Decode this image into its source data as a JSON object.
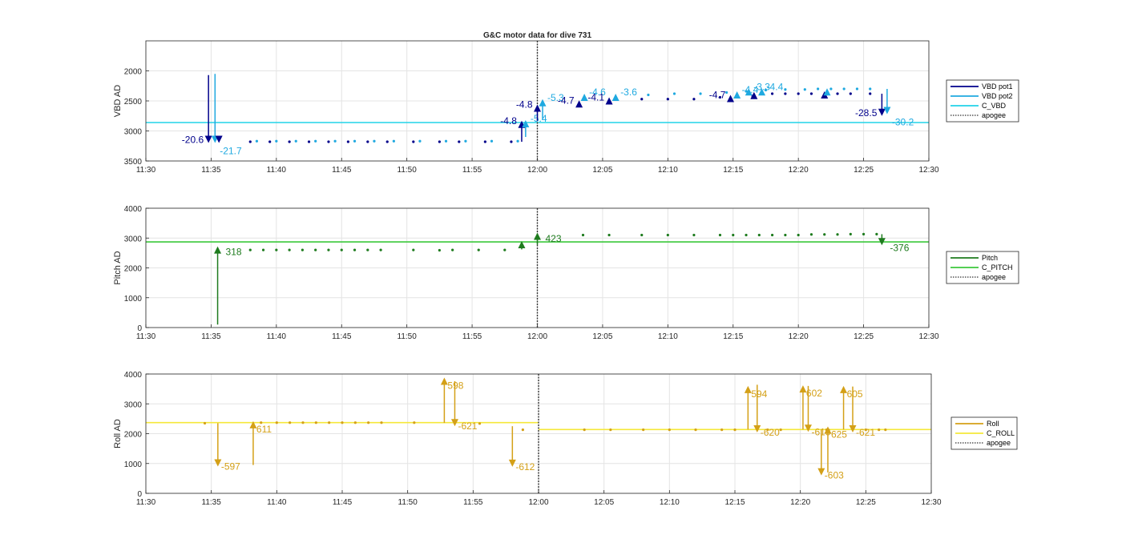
{
  "chart_data": [
    {
      "type": "scatter",
      "title": "G&C motor data for dive 731",
      "ylabel": "VBD AD",
      "ylim": [
        1500,
        3500
      ],
      "yreversed": true,
      "yticks": [
        2000,
        2500,
        3000,
        3500
      ],
      "xlim": [
        "11:30",
        "12:30"
      ],
      "xticks": [
        "11:30",
        "11:35",
        "11:40",
        "11:45",
        "11:50",
        "11:55",
        "12:00",
        "12:05",
        "12:10",
        "12:15",
        "12:20",
        "12:25",
        "12:30"
      ],
      "grid": true,
      "legend_position": "outside-right",
      "legend": [
        {
          "label": "VBD pot1",
          "color": "#00008b",
          "style": "solid"
        },
        {
          "label": "VBD pot2",
          "color": "#1fa9e0",
          "style": "solid"
        },
        {
          "label": "C_VBD",
          "color": "#22d3e8",
          "style": "solid"
        },
        {
          "label": "apogee",
          "color": "#333333",
          "style": "dotted"
        }
      ],
      "reference_line": {
        "name": "C_VBD",
        "y": 2860,
        "color": "#22d3e8"
      },
      "apogee": "12:00",
      "series": [
        {
          "name": "VBD pot1",
          "color": "#00008b",
          "x": [
            "11:38",
            "11:39.5",
            "11:41",
            "11:42.5",
            "11:44",
            "11:45.5",
            "11:47",
            "11:48.5",
            "11:50.5",
            "11:52.5",
            "11:54",
            "11:56",
            "11:58",
            "12:08",
            "12:10",
            "12:12",
            "12:14",
            "12:16.5",
            "12:18",
            "12:19",
            "12:20",
            "12:21",
            "12:23",
            "12:24",
            "12:25.5"
          ],
          "y": [
            3180,
            3180,
            3180,
            3180,
            3180,
            3180,
            3180,
            3180,
            3180,
            3180,
            3180,
            3180,
            3180,
            2470,
            2470,
            2470,
            2440,
            2420,
            2380,
            2380,
            2380,
            2380,
            2380,
            2380,
            2380
          ]
        },
        {
          "name": "VBD pot2",
          "color": "#1fa9e0",
          "x": [
            "11:38.5",
            "11:40",
            "11:41.5",
            "11:43",
            "11:44.5",
            "11:46",
            "11:47.5",
            "11:49",
            "11:51",
            "11:53",
            "11:54.5",
            "11:56.5",
            "11:58.5",
            "12:08.5",
            "12:10.5",
            "12:12.5",
            "12:14.5",
            "12:16",
            "12:17.5",
            "12:19",
            "12:20.5",
            "12:21.5",
            "12:22.5",
            "12:23.5",
            "12:24.5",
            "12:25.5"
          ],
          "y": [
            3170,
            3170,
            3170,
            3170,
            3170,
            3170,
            3170,
            3170,
            3170,
            3170,
            3170,
            3170,
            3170,
            2400,
            2380,
            2380,
            2360,
            2340,
            2320,
            2310,
            2310,
            2300,
            2300,
            2300,
            2300,
            2300
          ]
        }
      ],
      "moves": [
        {
          "x": "11:34.8",
          "from": 2070,
          "to": 3200,
          "color": "#00008b",
          "label": "-20.6",
          "label_color": "#00008b"
        },
        {
          "x": "11:35.3",
          "from": 2050,
          "to": 3200,
          "color": "#1fa9e0",
          "label": "-21.7",
          "label_color": "#1fa9e0"
        },
        {
          "x": "11:35.6",
          "from": 3180,
          "to": 3200,
          "color": "#00008b",
          "label": "",
          "label_color": "#00008b"
        },
        {
          "x": "11:58.8",
          "from": 3180,
          "to": 2830,
          "color": "#00008b",
          "label": "-4.8",
          "label_color": "#00008b"
        },
        {
          "x": "11:59.1",
          "from": 3100,
          "to": 2820,
          "color": "#1fa9e0",
          "label": "-5.4",
          "label_color": "#1fa9e0"
        },
        {
          "x": "12:00",
          "from": 2830,
          "to": 2560,
          "color": "#00008b",
          "label": "-4.8",
          "label_color": "#00008b"
        },
        {
          "x": "12:00.4",
          "from": 2800,
          "to": 2470,
          "color": "#1fa9e0",
          "label": "-5.3",
          "label_color": "#1fa9e0"
        },
        {
          "x": "12:03.2",
          "from": 2580,
          "to": 2490,
          "color": "#00008b",
          "label": "-4.7",
          "label_color": "#00008b"
        },
        {
          "x": "12:03.6",
          "from": 2460,
          "to": 2380,
          "color": "#1fa9e0",
          "label": "-4.6",
          "label_color": "#1fa9e0"
        },
        {
          "x": "12:05.5",
          "from": 2500,
          "to": 2440,
          "color": "#00008b",
          "label": "-4.1",
          "label_color": "#00008b"
        },
        {
          "x": "12:06",
          "from": 2430,
          "to": 2380,
          "color": "#1fa9e0",
          "label": "-3.6",
          "label_color": "#1fa9e0"
        },
        {
          "x": "12:14.8",
          "from": 2460,
          "to": 2400,
          "color": "#00008b",
          "label": "-4.7",
          "label_color": "#00008b"
        },
        {
          "x": "12:15.3",
          "from": 2400,
          "to": 2340,
          "color": "#1fa9e0",
          "label": "-4.4",
          "label_color": "#1fa9e0"
        },
        {
          "x": "12:16.6",
          "from": 2420,
          "to": 2350,
          "color": "#00008b",
          "label": "",
          "label_color": "#00008b"
        },
        {
          "x": "12:16.2",
          "from": 2350,
          "to": 2290,
          "color": "#1fa9e0",
          "label": "-3.3",
          "label_color": "#1fa9e0"
        },
        {
          "x": "12:17.2",
          "from": 2350,
          "to": 2290,
          "color": "#1fa9e0",
          "label": "-4.4",
          "label_color": "#1fa9e0"
        },
        {
          "x": "12:22",
          "from": 2420,
          "to": 2340,
          "color": "#00008b",
          "label": "",
          "label_color": "#00008b"
        },
        {
          "x": "12:22.2",
          "from": 2350,
          "to": 2290,
          "color": "#1fa9e0",
          "label": "",
          "label_color": "#1fa9e0"
        },
        {
          "x": "12:26.4",
          "from": 2380,
          "to": 2750,
          "color": "#00008b",
          "label": "-28.5",
          "label_color": "#00008b"
        },
        {
          "x": "12:26.8",
          "from": 2300,
          "to": 2720,
          "color": "#1fa9e0",
          "label": "-30.2",
          "label_color": "#1fa9e0"
        }
      ]
    },
    {
      "type": "scatter",
      "title": "",
      "ylabel": "Pitch AD",
      "ylim": [
        0,
        4000
      ],
      "yreversed": false,
      "yticks": [
        0,
        1000,
        2000,
        3000,
        4000
      ],
      "xlim": [
        "11:30",
        "12:30"
      ],
      "xticks": [
        "11:30",
        "11:35",
        "11:40",
        "11:45",
        "11:50",
        "11:55",
        "12:00",
        "12:05",
        "12:10",
        "12:15",
        "12:20",
        "12:25",
        "12:30"
      ],
      "grid": true,
      "legend_position": "outside-right",
      "legend": [
        {
          "label": "Pitch",
          "color": "#1e7b1e",
          "style": "solid"
        },
        {
          "label": "C_PITCH",
          "color": "#3cc83c",
          "style": "solid"
        },
        {
          "label": "apogee",
          "color": "#333333",
          "style": "dotted"
        }
      ],
      "reference_line": {
        "name": "C_PITCH",
        "y": 2870,
        "color": "#3cc83c"
      },
      "apogee": "12:00",
      "series": [
        {
          "name": "Pitch",
          "color": "#1e7b1e",
          "x": [
            "11:38",
            "11:39",
            "11:40",
            "11:41",
            "11:42",
            "11:43",
            "11:44",
            "11:45",
            "11:46",
            "11:47",
            "11:48",
            "11:50.5",
            "11:52.5",
            "11:53.5",
            "11:55.5",
            "11:57.5",
            "12:03.5",
            "12:05.5",
            "12:08",
            "12:10",
            "12:12",
            "12:14",
            "12:15",
            "12:16",
            "12:17",
            "12:18",
            "12:19",
            "12:20",
            "12:21",
            "12:22",
            "12:23",
            "12:24",
            "12:25",
            "12:26"
          ],
          "y": [
            2600,
            2600,
            2600,
            2600,
            2600,
            2600,
            2600,
            2600,
            2600,
            2600,
            2600,
            2600,
            2590,
            2600,
            2600,
            2600,
            3100,
            3100,
            3100,
            3100,
            3100,
            3100,
            3100,
            3100,
            3100,
            3100,
            3100,
            3100,
            3120,
            3120,
            3120,
            3130,
            3130,
            3130
          ]
        }
      ],
      "moves": [
        {
          "x": "11:35.5",
          "from": 100,
          "to": 2720,
          "color": "#1e7b1e",
          "label": "318",
          "label_color": "#1e7b1e"
        },
        {
          "x": "11:58.8",
          "from": 2620,
          "to": 2900,
          "color": "#1e7b1e",
          "label": "",
          "label_color": "#1e7b1e"
        },
        {
          "x": "12:00",
          "from": 2780,
          "to": 3180,
          "color": "#1e7b1e",
          "label": "423",
          "label_color": "#1e7b1e"
        },
        {
          "x": "12:26.4",
          "from": 3130,
          "to": 2760,
          "color": "#1e7b1e",
          "label": "-376",
          "label_color": "#1e7b1e"
        }
      ]
    },
    {
      "type": "scatter",
      "title": "",
      "ylabel": "Roll AD",
      "ylim": [
        0,
        4000
      ],
      "yreversed": false,
      "yticks": [
        0,
        1000,
        2000,
        3000,
        4000
      ],
      "xlim": [
        "11:30",
        "12:30"
      ],
      "xticks": [
        "11:30",
        "11:35",
        "11:40",
        "11:45",
        "11:50",
        "11:55",
        "12:00",
        "12:05",
        "12:10",
        "12:15",
        "12:20",
        "12:25",
        "12:30"
      ],
      "grid": true,
      "legend_position": "outside-right",
      "legend": [
        {
          "label": "Roll",
          "color": "#d4a017",
          "style": "solid"
        },
        {
          "label": "C_ROLL",
          "color": "#f5e83a",
          "style": "solid"
        },
        {
          "label": "apogee",
          "color": "#333333",
          "style": "dotted"
        }
      ],
      "reference_lines": [
        {
          "name": "C_ROLL",
          "y": 2370,
          "from": "11:30",
          "to": "12:00",
          "color": "#f5e83a"
        },
        {
          "name": "C_ROLL",
          "y": 2140,
          "from": "12:00",
          "to": "12:30",
          "color": "#f5e83a"
        }
      ],
      "apogee": "12:00",
      "series": [
        {
          "name": "Roll",
          "color": "#d4a017",
          "x": [
            "11:34.5",
            "11:38.8",
            "11:40",
            "11:41",
            "11:42",
            "11:43",
            "11:44",
            "11:45",
            "11:46",
            "11:47",
            "11:48",
            "11:50.5",
            "11:55.5",
            "11:58.8",
            "12:03.5",
            "12:05.5",
            "12:08",
            "12:10",
            "12:12",
            "12:14",
            "12:15",
            "12:17.5",
            "12:18.5",
            "12:22",
            "12:25",
            "12:26",
            "12:26.5"
          ],
          "y": [
            2350,
            2370,
            2370,
            2370,
            2370,
            2370,
            2370,
            2370,
            2370,
            2370,
            2370,
            2370,
            2340,
            2130,
            2130,
            2130,
            2130,
            2130,
            2130,
            2130,
            2130,
            2130,
            2130,
            2130,
            2130,
            2130,
            2130
          ]
        }
      ],
      "moves": [
        {
          "x": "11:35.5",
          "from": 2350,
          "to": 900,
          "color": "#d4a017",
          "label": "-597",
          "label_color": "#d4a017"
        },
        {
          "x": "11:38.2",
          "from": 950,
          "to": 2420,
          "color": "#d4a017",
          "label": "611",
          "label_color": "#d4a017"
        },
        {
          "x": "11:52.8",
          "from": 2360,
          "to": 3880,
          "color": "#d4a017",
          "label": "598",
          "label_color": "#d4a017"
        },
        {
          "x": "11:53.6",
          "from": 3760,
          "to": 2250,
          "color": "#d4a017",
          "label": "-621",
          "label_color": "#d4a017"
        },
        {
          "x": "11:58",
          "from": 2250,
          "to": 890,
          "color": "#d4a017",
          "label": "-612",
          "label_color": "#d4a017"
        },
        {
          "x": "12:16",
          "from": 2140,
          "to": 3600,
          "color": "#d4a017",
          "label": "594",
          "label_color": "#d4a017"
        },
        {
          "x": "12:16.7",
          "from": 3640,
          "to": 2040,
          "color": "#d4a017",
          "label": "-620",
          "label_color": "#d4a017"
        },
        {
          "x": "12:20.2",
          "from": 2140,
          "to": 3620,
          "color": "#d4a017",
          "label": "602",
          "label_color": "#d4a017"
        },
        {
          "x": "12:20.6",
          "from": 3600,
          "to": 2060,
          "color": "#d4a017",
          "label": "-618",
          "label_color": "#d4a017"
        },
        {
          "x": "12:21.6",
          "from": 2140,
          "to": 600,
          "color": "#d4a017",
          "label": "-603",
          "label_color": "#d4a017"
        },
        {
          "x": "12:22.1",
          "from": 700,
          "to": 2240,
          "color": "#d4a017",
          "label": "625",
          "label_color": "#d4a017"
        },
        {
          "x": "12:23.3",
          "from": 2140,
          "to": 3600,
          "color": "#d4a017",
          "label": "605",
          "label_color": "#d4a017"
        },
        {
          "x": "12:24",
          "from": 3580,
          "to": 2040,
          "color": "#d4a017",
          "label": "-621",
          "label_color": "#d4a017"
        }
      ]
    }
  ]
}
